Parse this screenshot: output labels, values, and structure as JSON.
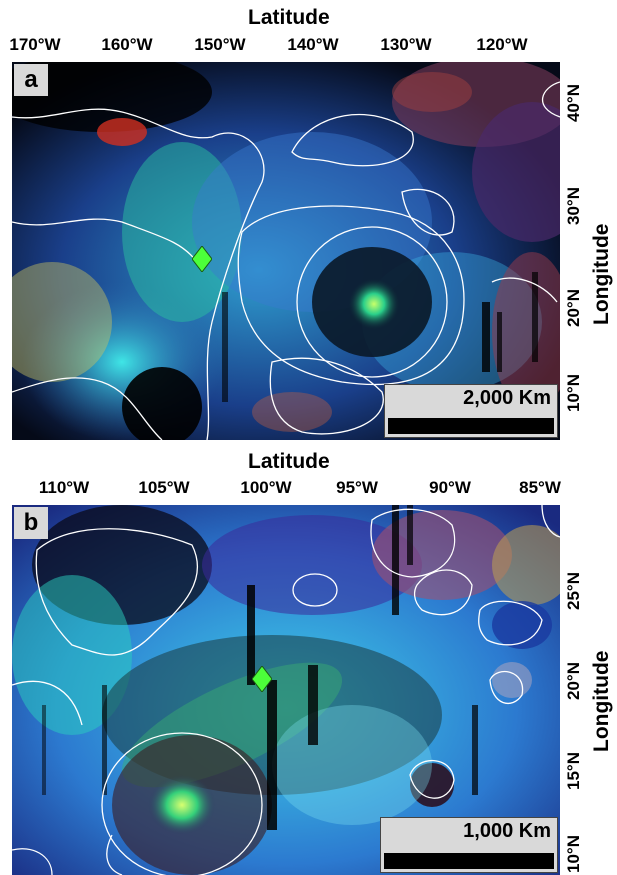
{
  "panel_a": {
    "letter": "a",
    "x_title": "Latitude",
    "y_title": "Longitude",
    "x_ticks": [
      "170°W",
      "160°W",
      "150°W",
      "140°W",
      "130°W",
      "120°W"
    ],
    "y_ticks": [
      "40°N",
      "30°N",
      "20°N",
      "10°N"
    ],
    "scale_label": "2,000 Km",
    "marker": "green-diamond"
  },
  "panel_b": {
    "letter": "b",
    "x_title": "Latitude",
    "y_title": "Longitude",
    "x_ticks": [
      "110°W",
      "105°W",
      "100°W",
      "95°W",
      "90°W",
      "85°W"
    ],
    "y_ticks": [
      "25°N",
      "20°N",
      "15°N",
      "10°N"
    ],
    "scale_label": "1,000 Km",
    "marker": "green-diamond"
  },
  "colors": {
    "background": "#ffffff",
    "map_cyan": "#33d6e6",
    "map_blue": "#2444c8",
    "map_green": "#3fc07a",
    "marker": "#4cff3a",
    "outline": "#ffffff",
    "scalebar_bg": "#d9d9d9"
  }
}
